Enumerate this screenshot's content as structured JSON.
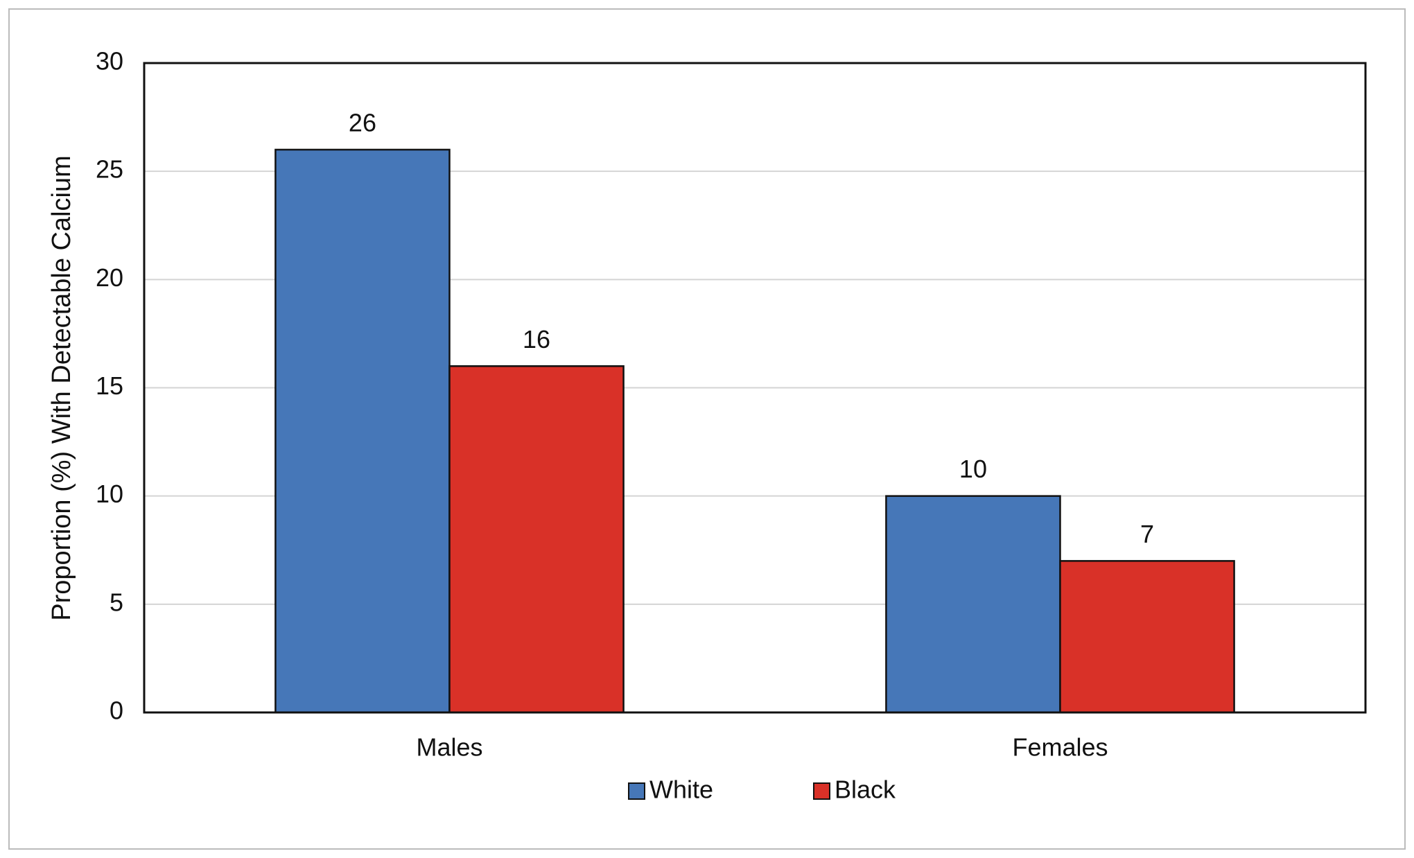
{
  "chart_data": {
    "type": "bar",
    "y_label": "Proportion (%) With Detectable Calcium",
    "categories": [
      "Males",
      "Females"
    ],
    "series": [
      {
        "name": "White",
        "color": "#4677b8",
        "values": [
          26,
          10
        ]
      },
      {
        "name": "Black",
        "color": "#d93128",
        "values": [
          16,
          7
        ]
      }
    ],
    "ylim": [
      0,
      30
    ],
    "yticks": [
      0,
      5,
      10,
      15,
      20,
      25,
      30
    ],
    "grid": true,
    "legend": "bottom"
  }
}
